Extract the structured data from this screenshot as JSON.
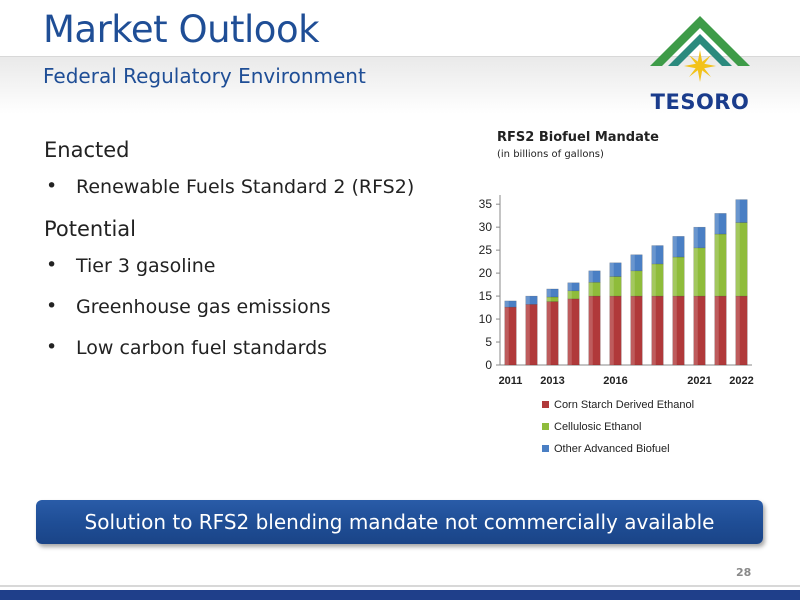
{
  "header": {
    "title": "Market Outlook",
    "subtitle": "Federal Regulatory Environment"
  },
  "logo": {
    "text": "TESORO",
    "colors": {
      "green": "#3e9b48",
      "navy": "#1a3c8c",
      "yellow": "#f2c21b",
      "teal": "#2b8a7e"
    }
  },
  "content": {
    "enacted_heading": "Enacted",
    "enacted_items": [
      "Renewable Fuels Standard 2 (RFS2)"
    ],
    "potential_heading": "Potential",
    "potential_items": [
      "Tier 3 gasoline",
      "Greenhouse gas emissions",
      "Low carbon fuel standards"
    ],
    "bullet_glyph": "•"
  },
  "chart_data": {
    "type": "bar",
    "stacked": true,
    "title": "RFS2 Biofuel Mandate",
    "subtitle": "(in billions of gallons)",
    "categories": [
      "2011",
      "2012",
      "2013",
      "2014",
      "2015",
      "2016",
      "2017",
      "2018",
      "2019",
      "2020",
      "2021",
      "2022"
    ],
    "x_tick_labels": [
      "2011",
      "",
      "2013",
      "",
      "",
      "2016",
      "",
      "",
      "",
      "2021",
      "",
      "2022"
    ],
    "series": [
      {
        "name": "Corn Starch Derived Ethanol",
        "color": "#b0393a",
        "values": [
          12.6,
          13.2,
          13.8,
          14.4,
          15,
          15,
          15,
          15,
          15,
          15,
          15,
          15
        ]
      },
      {
        "name": "Cellulosic Ethanol",
        "color": "#8fbc3b",
        "values": [
          0,
          0,
          1,
          1.75,
          3,
          4.25,
          5.5,
          7,
          8.5,
          10.5,
          13.5,
          16
        ]
      },
      {
        "name": "Other Advanced Biofuel",
        "color": "#4a7fc4",
        "values": [
          1.35,
          1.8,
          1.75,
          1.75,
          2.5,
          3,
          3.5,
          4,
          4.5,
          4.5,
          4.5,
          5
        ]
      }
    ],
    "ylim": [
      0,
      37
    ],
    "yticks": [
      0,
      5,
      10,
      15,
      20,
      25,
      30,
      35
    ],
    "grid": false,
    "legend_position": "bottom"
  },
  "banner": {
    "text": "Solution to RFS2 blending mandate not commercially available"
  },
  "page_number": "28",
  "theme": {
    "title_blue": "#1f4e96",
    "footer_navy": "#1f3f8a"
  }
}
